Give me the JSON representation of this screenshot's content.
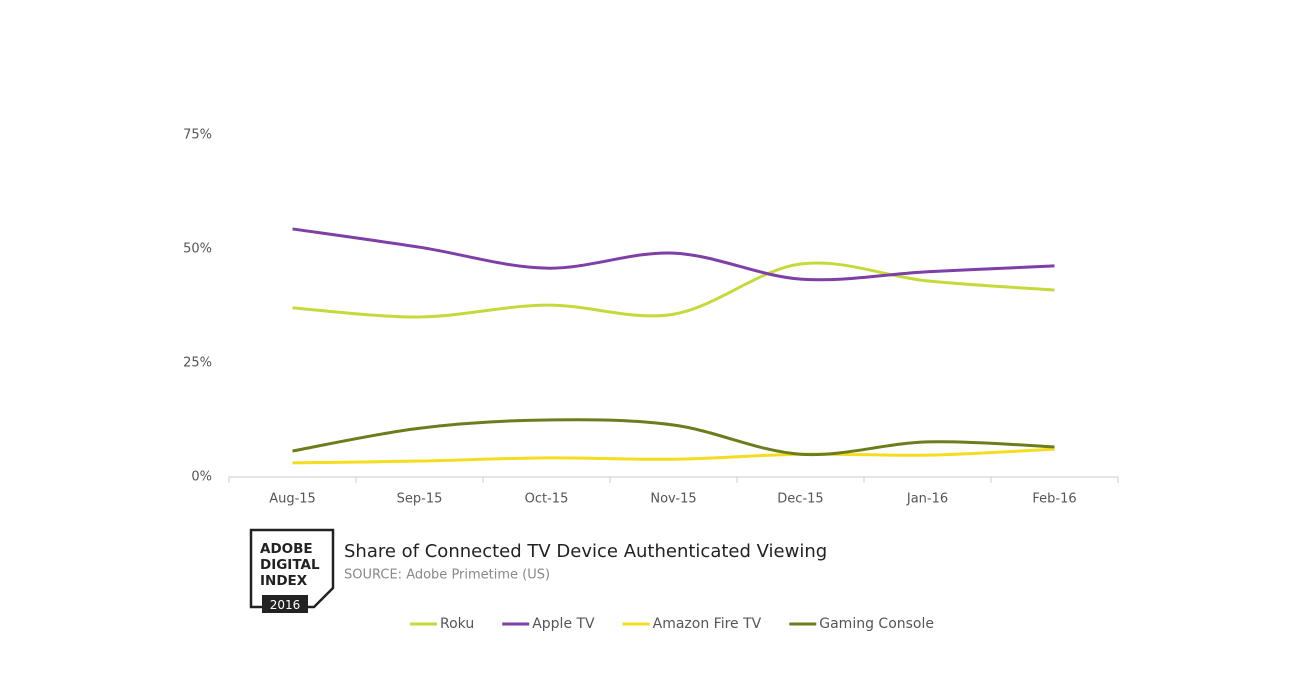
{
  "chart_data": {
    "type": "line",
    "title": "Share of Connected TV Device Authenticated Viewing",
    "subtitle": "SOURCE: Adobe Primetime (US)",
    "logo": {
      "lines": [
        "ADOBE",
        "DIGITAL",
        "INDEX"
      ],
      "year": "2016"
    },
    "categories": [
      "Aug-15",
      "Sep-15",
      "Oct-15",
      "Nov-15",
      "Dec-15",
      "Jan-16",
      "Feb-16"
    ],
    "series": [
      {
        "name": "Roku",
        "color": "#c5da3a",
        "values": [
          37.1,
          35.1,
          37.7,
          35.7,
          46.7,
          43.0,
          41.0
        ]
      },
      {
        "name": "Apple TV",
        "color": "#7e3fa6",
        "values": [
          54.4,
          50.4,
          45.8,
          49.1,
          43.4,
          45.0,
          46.3
        ]
      },
      {
        "name": "Amazon Fire TV",
        "color": "#f5dc1e",
        "values": [
          3.1,
          3.5,
          4.2,
          3.9,
          5.0,
          4.8,
          6.1
        ]
      },
      {
        "name": "Gaming Console",
        "color": "#6b7d1c",
        "values": [
          5.7,
          10.7,
          12.5,
          11.4,
          5.0,
          7.7,
          6.6
        ]
      }
    ],
    "ylim": [
      0,
      75
    ],
    "yticks": [
      {
        "value": 0,
        "label": "0%"
      },
      {
        "value": 25,
        "label": "25%"
      },
      {
        "value": 50,
        "label": "50%"
      },
      {
        "value": 75,
        "label": "75%"
      }
    ],
    "grid": false,
    "legend": "bottom"
  }
}
